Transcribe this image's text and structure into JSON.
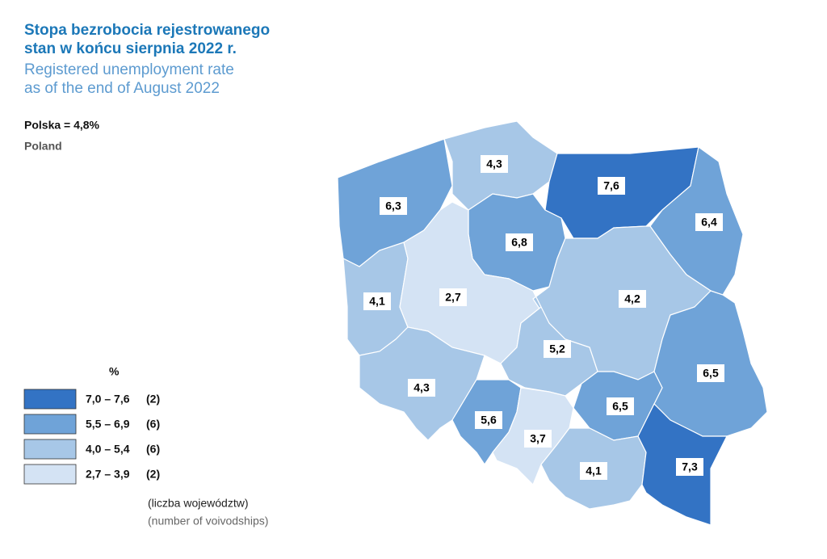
{
  "header": {
    "title_pl": [
      "Stopa bezrobocia rejestrowanego",
      "stan w końcu sierpnia 2022 r."
    ],
    "title_en": [
      "Registered unemployment rate",
      "as of the end of August 2022"
    ],
    "national": "Polska = 4,8%",
    "national_en": "Poland"
  },
  "legend": {
    "unit": "%",
    "classes": [
      {
        "range": "7,0 – 7,6",
        "count": "(2)",
        "color": "#3373c4"
      },
      {
        "range": "5,5 – 6,9",
        "count": "(6)",
        "color": "#6fa3d8"
      },
      {
        "range": "4,0 – 5,4",
        "count": "(6)",
        "color": "#a7c7e7"
      },
      {
        "range": "2,7 – 3,9",
        "count": "(2)",
        "color": "#d4e3f4"
      }
    ],
    "note_pl": "(liczba województw)",
    "note_en": "(number of voivodships)"
  },
  "map": {
    "regions": [
      {
        "value": "6,3",
        "color": "#6fa3d8"
      },
      {
        "value": "4,3",
        "color": "#a7c7e7"
      },
      {
        "value": "7,6",
        "color": "#3373c4"
      },
      {
        "value": "6,4",
        "color": "#6fa3d8"
      },
      {
        "value": "6,8",
        "color": "#6fa3d8"
      },
      {
        "value": "4,1",
        "color": "#a7c7e7"
      },
      {
        "value": "2,7",
        "color": "#d4e3f4"
      },
      {
        "value": "4,2",
        "color": "#a7c7e7"
      },
      {
        "value": "5,2",
        "color": "#a7c7e7"
      },
      {
        "value": "6,5",
        "color": "#6fa3d8"
      },
      {
        "value": "4,3",
        "color": "#a7c7e7"
      },
      {
        "value": "5,6",
        "color": "#6fa3d8"
      },
      {
        "value": "6,5",
        "color": "#6fa3d8"
      },
      {
        "value": "3,7",
        "color": "#d4e3f4"
      },
      {
        "value": "4,1",
        "color": "#a7c7e7"
      },
      {
        "value": "7,3",
        "color": "#3373c4"
      }
    ]
  }
}
